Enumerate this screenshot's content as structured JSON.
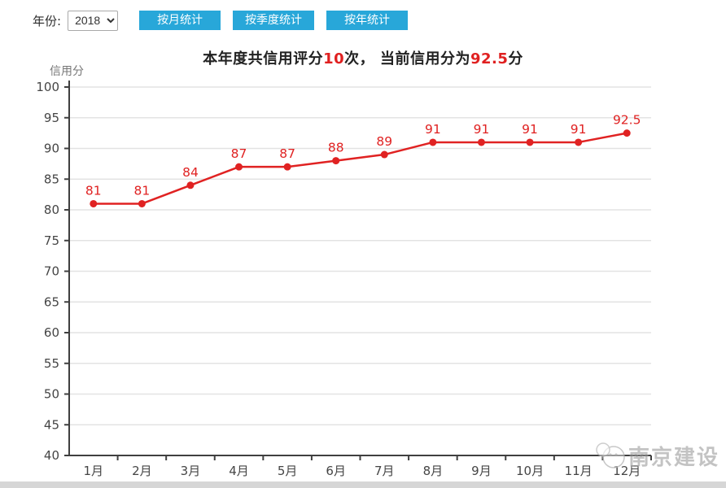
{
  "header": {
    "year_label": "年份:",
    "year_value": "2018",
    "buttons": [
      {
        "label": "按月统计"
      },
      {
        "label": "按季度统计"
      },
      {
        "label": "按年统计"
      }
    ]
  },
  "summary": {
    "segments": [
      {
        "text": "本年度共信用评分"
      },
      {
        "text": "10"
      },
      {
        "text": "次， 当前信用分为"
      },
      {
        "text": "92.5"
      },
      {
        "text": "分"
      }
    ]
  },
  "chart_data": {
    "type": "line",
    "title": "",
    "xlabel": "",
    "ylabel": "信用分",
    "categories": [
      "1月",
      "2月",
      "3月",
      "4月",
      "5月",
      "6月",
      "7月",
      "8月",
      "9月",
      "10月",
      "11月",
      "12月"
    ],
    "values": [
      81,
      81,
      84,
      87,
      87,
      88,
      89,
      91,
      91,
      91,
      91,
      92.5
    ],
    "ylim": [
      40,
      100
    ],
    "ytick_step": 5,
    "grid": true,
    "legend_position": "none",
    "show_point_labels": true,
    "colors": {
      "line": "#e02222",
      "marker": "#e02222",
      "point_label": "#e02222",
      "axis": "#3f3f3f",
      "tick_label": "#454545",
      "grid": "#e3e3e3",
      "ylabel": "#777777"
    }
  },
  "watermark": {
    "text": "南京建设"
  }
}
